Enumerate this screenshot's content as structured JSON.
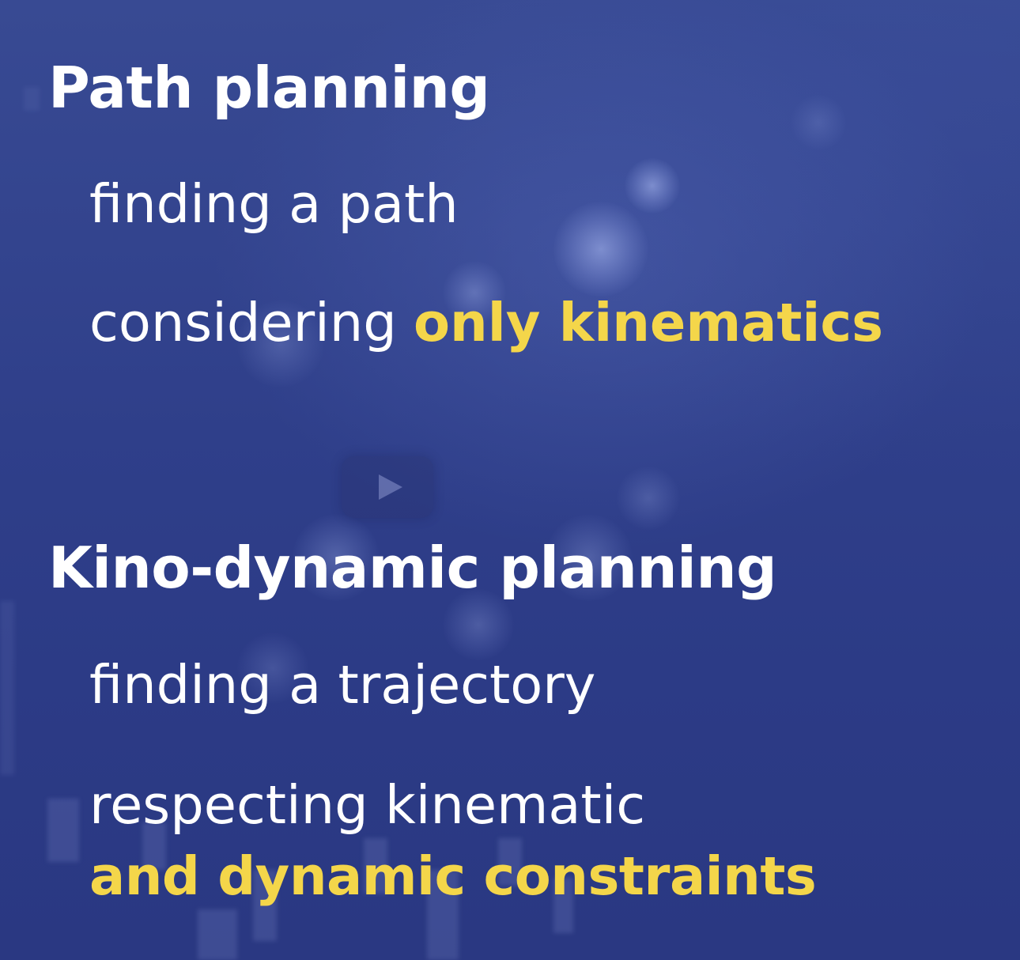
{
  "sections": [
    {
      "title": "Path planning",
      "line1": "finding a path",
      "line2_prefix": "considering ",
      "line2_highlight": "only kinematics"
    },
    {
      "title": "Kino-dynamic planning",
      "line1": "finding a trajectory",
      "line2": "respecting kinematic",
      "line3_highlight": "and dynamic constraints"
    }
  ],
  "colors": {
    "background": "#2f3f8a",
    "text": "#ffffff",
    "highlight": "#f4d64a"
  },
  "icons": {
    "play": "play-icon"
  }
}
